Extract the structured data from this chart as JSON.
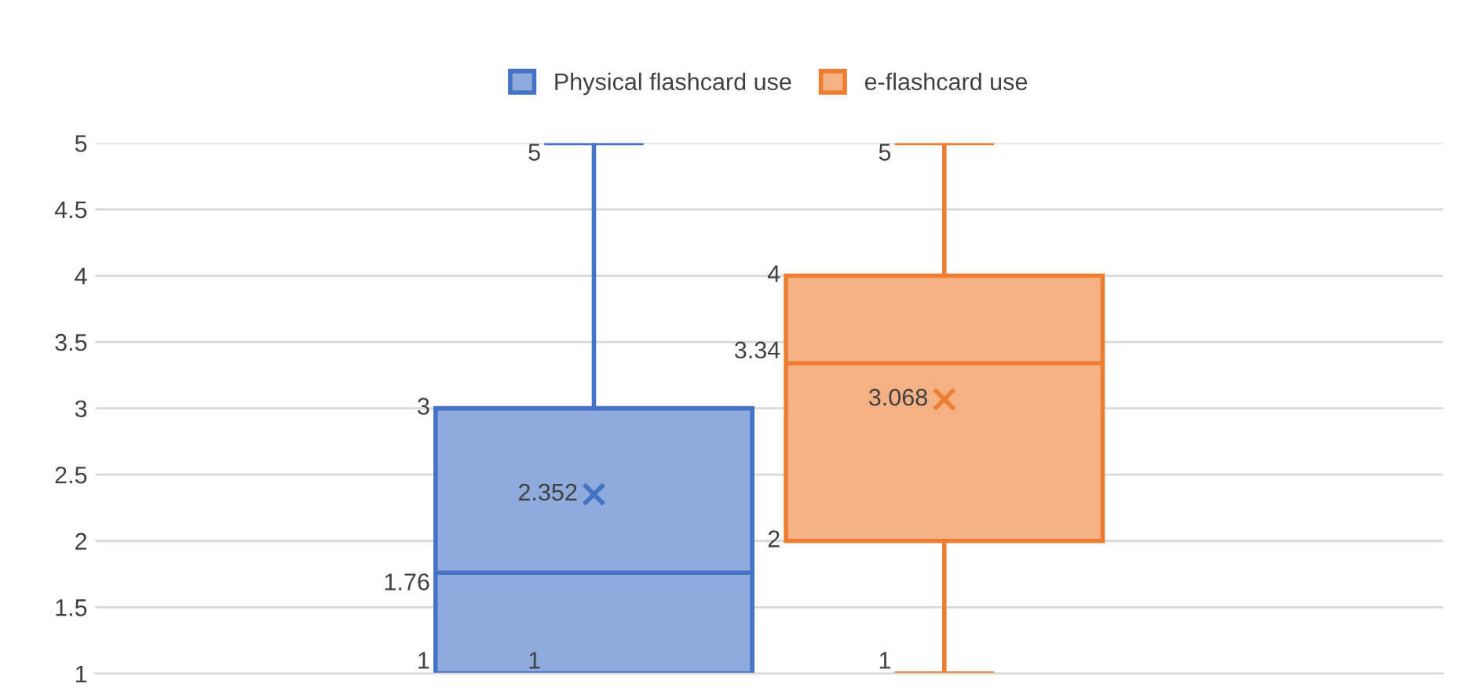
{
  "chart_data": {
    "type": "box",
    "categories": [
      null
    ],
    "series": [
      {
        "name": "Physical flashcard use",
        "color": "#4472c4",
        "boxes": [
          {
            "low": 1,
            "q1": 1,
            "median": 1.76,
            "q3": 3,
            "high": 5,
            "mean": 2.352
          }
        ]
      },
      {
        "name": "e-flashcard use",
        "color": "#ed7d31",
        "boxes": [
          {
            "low": 1,
            "q1": 2,
            "median": 3.34,
            "q3": 4,
            "high": 5,
            "mean": 3.068
          }
        ]
      }
    ],
    "ylim": [
      1,
      5
    ],
    "yticks": [
      1,
      1.5,
      2,
      2.5,
      3,
      3.5,
      4,
      4.5,
      5
    ],
    "grid": "y",
    "legend": "top",
    "marker": "cross",
    "annotations": [
      "5",
      "3",
      "1.76",
      "1",
      "1",
      "2.352",
      "5",
      "4",
      "3.34",
      "2",
      "1",
      "3.068"
    ]
  }
}
